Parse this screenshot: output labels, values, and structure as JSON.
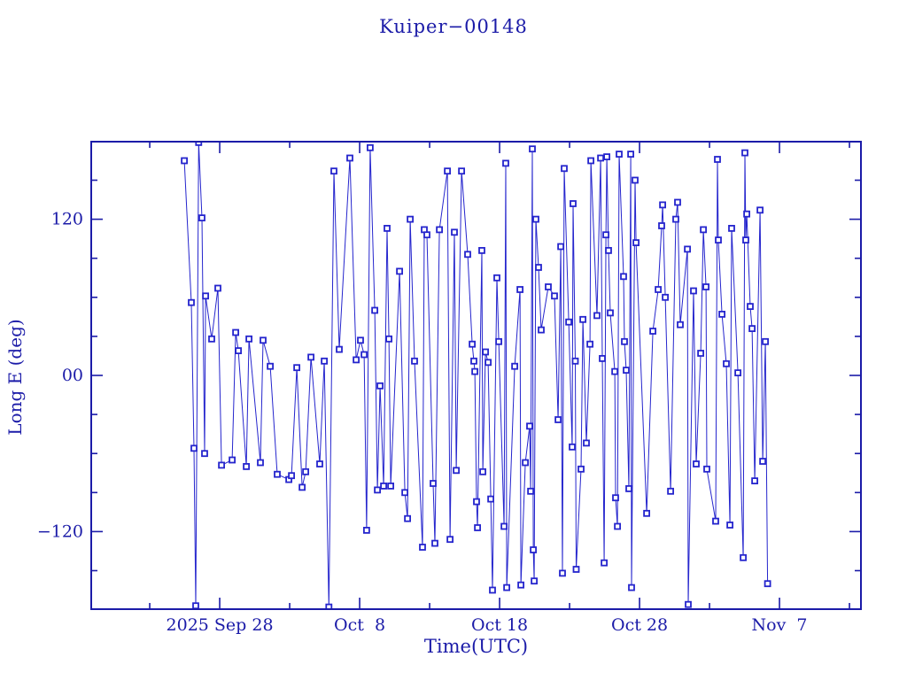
{
  "figure": {
    "background": "#ffffff",
    "ink_color": "#1b1ba8",
    "data_color": "#2525cd"
  },
  "chart_data": {
    "type": "line",
    "title": "Kuiper−00148",
    "xlabel": "Time(UTC)",
    "ylabel": "Long E (deg)",
    "legend": "none",
    "grid": "off",
    "marker": "open-square",
    "x_axis": {
      "unit": "days relative to 2025 Sep 28",
      "range": [
        -9.18,
        45.82
      ],
      "major_ticks": [
        {
          "d": 0,
          "label": "2025 Sep 28"
        },
        {
          "d": 10,
          "label": "Oct  8"
        },
        {
          "d": 20,
          "label": "Oct 18"
        },
        {
          "d": 30,
          "label": "Oct 28"
        },
        {
          "d": 40,
          "label": "Nov  7"
        }
      ],
      "minor_ticks": [
        -5,
        5,
        15,
        25,
        35,
        45
      ]
    },
    "y_axis": {
      "unit": "deg",
      "range": [
        -179.6,
        179.6
      ],
      "major_ticks": [
        {
          "v": 120,
          "label": "120"
        },
        {
          "v": 0,
          "label": "00"
        },
        {
          "v": -120,
          "label": "−120"
        }
      ],
      "minor_ticks": [
        150,
        90,
        60,
        30,
        -30,
        -60,
        -90,
        -150
      ]
    },
    "series": [
      {
        "name": "Long E (deg)",
        "color": "#2525cd",
        "points": [
          [
            -2.53,
            165
          ],
          [
            -2.03,
            56
          ],
          [
            -1.84,
            -56
          ],
          [
            -1.71,
            -177
          ],
          [
            -1.5,
            179
          ],
          [
            -1.27,
            121
          ],
          [
            -1.08,
            -60
          ],
          [
            -1.01,
            61
          ],
          [
            -0.57,
            28
          ],
          [
            -0.13,
            67
          ],
          [
            0.13,
            -69
          ],
          [
            0.89,
            -65
          ],
          [
            1.14,
            33
          ],
          [
            1.33,
            19
          ],
          [
            1.9,
            -70
          ],
          [
            2.09,
            28
          ],
          [
            2.91,
            -67
          ],
          [
            3.1,
            27
          ],
          [
            3.61,
            7
          ],
          [
            4.11,
            -76
          ],
          [
            4.94,
            -80
          ],
          [
            5.13,
            -77
          ],
          [
            5.51,
            6
          ],
          [
            5.89,
            -86
          ],
          [
            6.14,
            -74
          ],
          [
            6.52,
            14
          ],
          [
            7.15,
            -68
          ],
          [
            7.47,
            11
          ],
          [
            7.8,
            -178
          ],
          [
            8.16,
            157
          ],
          [
            8.54,
            20
          ],
          [
            9.3,
            167
          ],
          [
            9.75,
            12
          ],
          [
            10.06,
            27
          ],
          [
            10.32,
            16
          ],
          [
            10.5,
            -119
          ],
          [
            10.75,
            175
          ],
          [
            11.08,
            50
          ],
          [
            11.27,
            -88
          ],
          [
            11.46,
            -8
          ],
          [
            11.71,
            -85
          ],
          [
            11.96,
            113
          ],
          [
            12.09,
            28
          ],
          [
            12.22,
            -85
          ],
          [
            12.85,
            80
          ],
          [
            13.23,
            -90
          ],
          [
            13.42,
            -110
          ],
          [
            13.61,
            120
          ],
          [
            13.92,
            11
          ],
          [
            14.49,
            -132
          ],
          [
            14.62,
            112
          ],
          [
            14.81,
            108
          ],
          [
            15.25,
            -83
          ],
          [
            15.38,
            -129
          ],
          [
            15.7,
            112
          ],
          [
            16.27,
            157
          ],
          [
            16.46,
            -126
          ],
          [
            16.77,
            110
          ],
          [
            16.9,
            -73
          ],
          [
            17.28,
            157
          ],
          [
            17.72,
            93
          ],
          [
            18.04,
            24
          ],
          [
            18.16,
            11
          ],
          [
            18.23,
            3
          ],
          [
            18.35,
            -97
          ],
          [
            18.42,
            -117
          ],
          [
            18.73,
            96
          ],
          [
            18.8,
            -74
          ],
          [
            18.99,
            18
          ],
          [
            19.18,
            10
          ],
          [
            19.37,
            -95
          ],
          [
            19.49,
            -165
          ],
          [
            19.81,
            75
          ],
          [
            19.94,
            26
          ],
          [
            20.32,
            -116
          ],
          [
            20.44,
            163
          ],
          [
            20.51,
            -163
          ],
          [
            21.08,
            7
          ],
          [
            21.46,
            66
          ],
          [
            21.52,
            -161
          ],
          [
            21.84,
            -67
          ],
          [
            22.15,
            -39
          ],
          [
            22.22,
            -89
          ],
          [
            22.34,
            174
          ],
          [
            22.41,
            -134
          ],
          [
            22.47,
            -158
          ],
          [
            22.59,
            120
          ],
          [
            22.78,
            83
          ],
          [
            22.97,
            35
          ],
          [
            23.48,
            68
          ],
          [
            23.92,
            61
          ],
          [
            24.18,
            -34
          ],
          [
            24.37,
            99
          ],
          [
            24.49,
            -152
          ],
          [
            24.62,
            159
          ],
          [
            24.94,
            41
          ],
          [
            25.19,
            -55
          ],
          [
            25.25,
            132
          ],
          [
            25.41,
            11
          ],
          [
            25.47,
            -149
          ],
          [
            25.82,
            -72
          ],
          [
            25.95,
            43
          ],
          [
            26.2,
            -52
          ],
          [
            26.46,
            24
          ],
          [
            26.52,
            165
          ],
          [
            26.96,
            46
          ],
          [
            27.22,
            167
          ],
          [
            27.34,
            13
          ],
          [
            27.47,
            -144
          ],
          [
            27.6,
            108
          ],
          [
            27.66,
            168
          ],
          [
            27.78,
            96
          ],
          [
            27.91,
            48
          ],
          [
            28.23,
            3
          ],
          [
            28.29,
            -94
          ],
          [
            28.42,
            -116
          ],
          [
            28.54,
            170
          ],
          [
            28.86,
            76
          ],
          [
            28.92,
            26
          ],
          [
            29.05,
            4
          ],
          [
            29.24,
            -87
          ],
          [
            29.37,
            170
          ],
          [
            29.43,
            -163
          ],
          [
            29.68,
            150
          ],
          [
            29.75,
            102
          ],
          [
            30.51,
            -106
          ],
          [
            30.95,
            34
          ],
          [
            31.33,
            66
          ],
          [
            31.58,
            115
          ],
          [
            31.65,
            131
          ],
          [
            31.84,
            60
          ],
          [
            32.22,
            -89
          ],
          [
            32.59,
            120
          ],
          [
            32.72,
            133
          ],
          [
            32.91,
            39
          ],
          [
            33.42,
            97
          ],
          [
            33.48,
            -176
          ],
          [
            33.86,
            65
          ],
          [
            34.05,
            -68
          ],
          [
            34.37,
            17
          ],
          [
            34.56,
            112
          ],
          [
            34.75,
            68
          ],
          [
            34.81,
            -72
          ],
          [
            35.44,
            -112
          ],
          [
            35.57,
            166
          ],
          [
            35.63,
            104
          ],
          [
            35.89,
            47
          ],
          [
            36.2,
            9
          ],
          [
            36.46,
            -115
          ],
          [
            36.58,
            113
          ],
          [
            37.03,
            2
          ],
          [
            37.41,
            -140
          ],
          [
            37.53,
            171
          ],
          [
            37.59,
            104
          ],
          [
            37.66,
            124
          ],
          [
            37.91,
            53
          ],
          [
            38.04,
            36
          ],
          [
            38.23,
            -81
          ],
          [
            38.61,
            127
          ],
          [
            38.8,
            -66
          ],
          [
            38.99,
            26
          ],
          [
            39.15,
            -160
          ]
        ]
      }
    ]
  }
}
